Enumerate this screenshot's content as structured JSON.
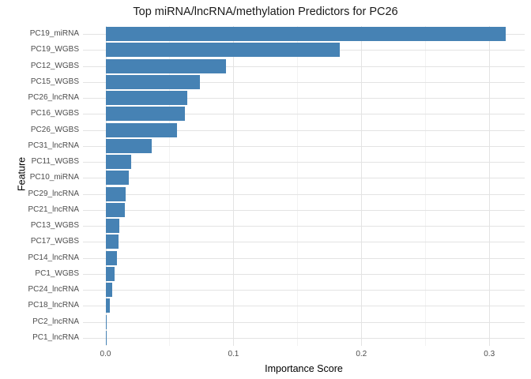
{
  "chart_data": {
    "type": "bar",
    "orientation": "horizontal",
    "title": "Top miRNA/lncRNA/methylation Predictors for PC26",
    "xlabel": "Importance Score",
    "ylabel": "Feature",
    "categories": [
      "PC19_miRNA",
      "PC19_WGBS",
      "PC12_WGBS",
      "PC15_WGBS",
      "PC26_lncRNA",
      "PC16_WGBS",
      "PC26_WGBS",
      "PC31_lncRNA",
      "PC11_WGBS",
      "PC10_miRNA",
      "PC29_lncRNA",
      "PC21_lncRNA",
      "PC13_WGBS",
      "PC17_WGBS",
      "PC14_lncRNA",
      "PC1_WGBS",
      "PC24_lncRNA",
      "PC18_lncRNA",
      "PC2_lncRNA",
      "PC1_lncRNA"
    ],
    "values": [
      0.313,
      0.183,
      0.094,
      0.074,
      0.064,
      0.062,
      0.056,
      0.036,
      0.02,
      0.018,
      0.016,
      0.015,
      0.011,
      0.01,
      0.009,
      0.007,
      0.005,
      0.0035,
      0.0005,
      0.0002
    ],
    "x_tick_values": [
      0.0,
      0.1,
      0.2,
      0.3
    ],
    "x_tick_labels": [
      "0.0",
      "0.1",
      "0.2",
      "0.3"
    ],
    "x_minor_tick_values": [
      0.05,
      0.15,
      0.25
    ],
    "xlim": [
      -0.0176,
      0.3277
    ],
    "bar_color": "#4682b4",
    "grid": true,
    "legend": "none",
    "background_color": "#ffffff",
    "grid_major_color": "#e3e3e3",
    "grid_minor_color": "#f2f2f2",
    "tick_label_color": "#4d4d4d"
  }
}
